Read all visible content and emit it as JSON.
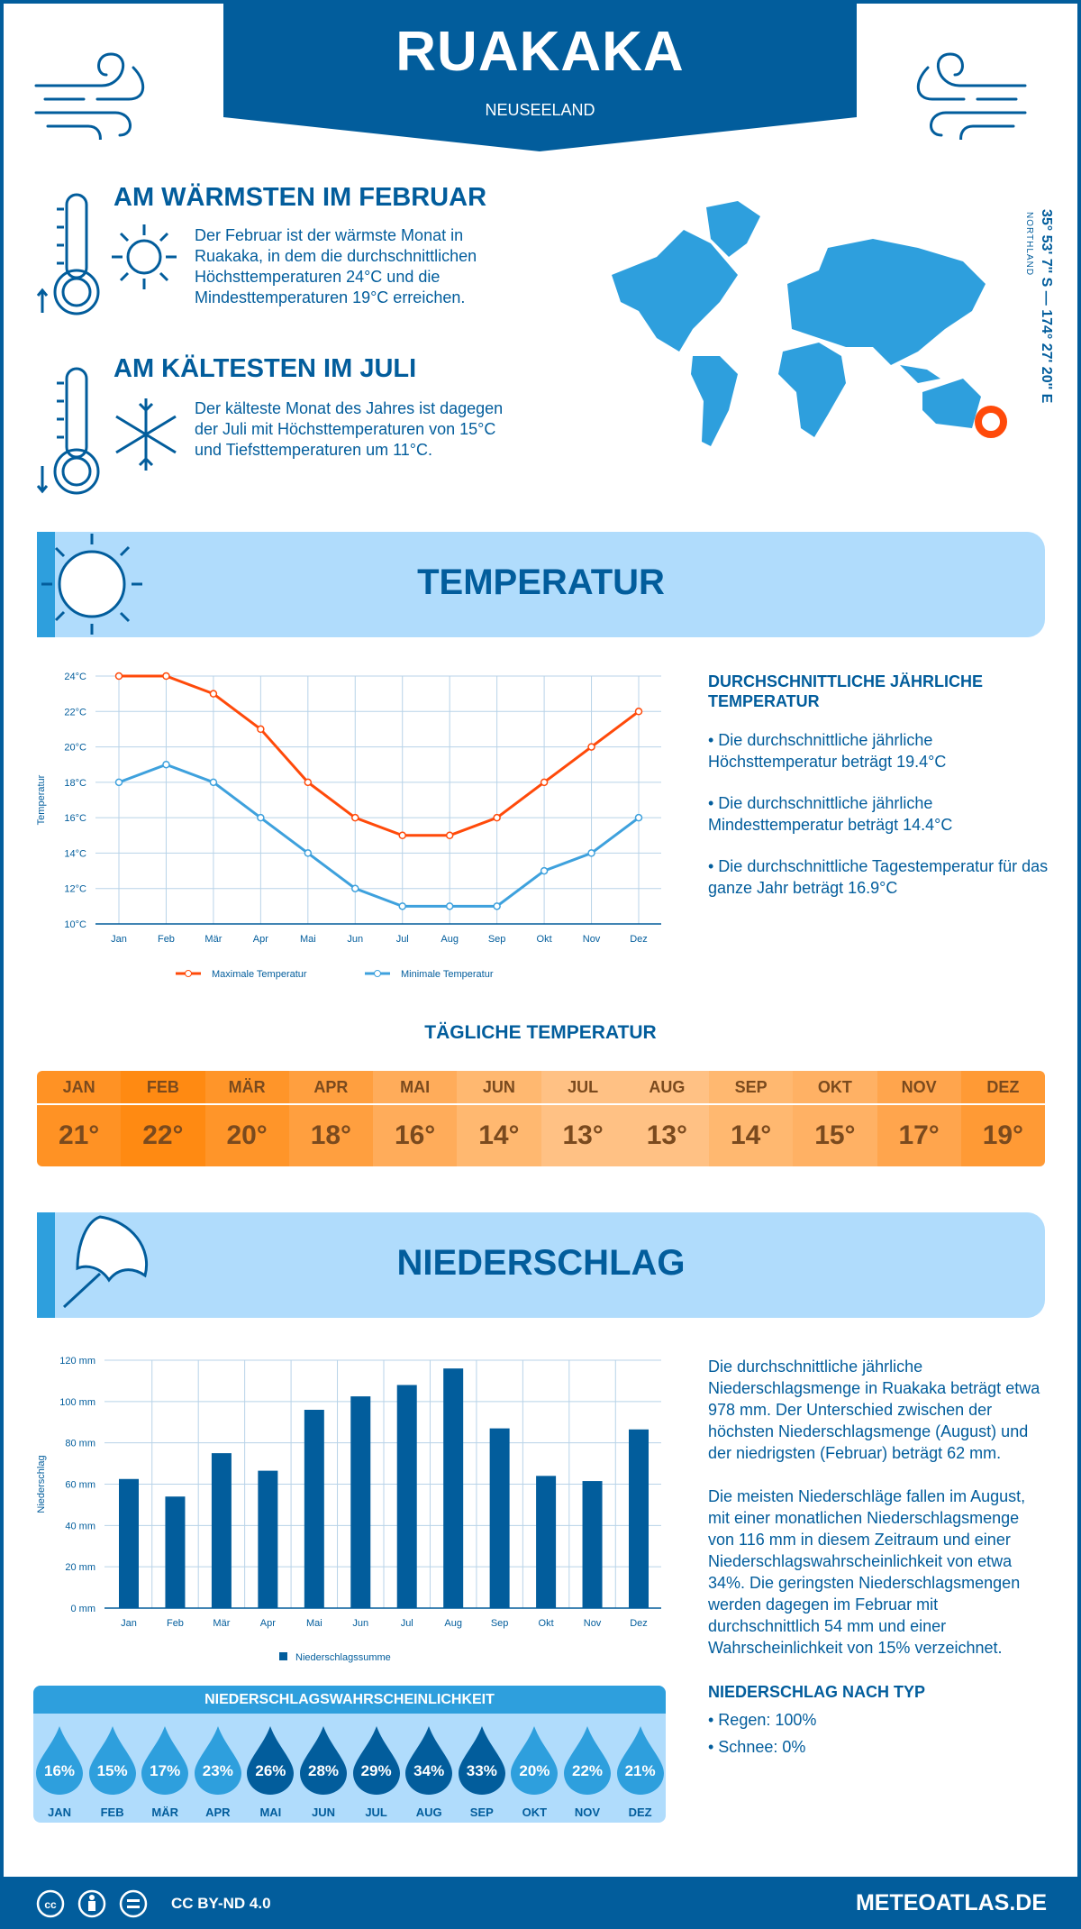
{
  "header": {
    "title": "RUAKAKA",
    "subtitle": "NEUSEELAND"
  },
  "colors": {
    "dark_blue": "#025d9c",
    "light_blue": "#2e9fdd",
    "pale_blue": "#b0dcfc",
    "max_temp": "#ff4a0a",
    "min_temp": "#3ea1dd"
  },
  "warmest": {
    "heading": "AM WÄRMSTEN IM FEBRUAR",
    "lines": [
      "Der Februar ist der wärmste Monat in",
      "Ruakaka, in dem die durchschnittlichen",
      "Höchsttemperaturen 24°C und die",
      "Mindesttemperaturen 19°C erreichen."
    ]
  },
  "coldest": {
    "heading": "AM KÄLTESTEN IM JULI",
    "lines": [
      "Der kälteste Monat des Jahres ist dagegen",
      "der Juli mit Höchsttemperaturen von 15°C",
      "und Tiefsttemperaturen um 11°C."
    ]
  },
  "location": {
    "coords": "35° 53' 7'' S — 174° 27' 20'' E",
    "region": "NORTHLAND"
  },
  "temperature": {
    "section_title": "TEMPERATUR",
    "annual_heading": "DURCHSCHNITTLICHE JÄHRLICHE TEMPERATUR",
    "bullets": [
      "• Die durchschnittliche jährliche Höchsttemperatur beträgt 19.4°C",
      "• Die durchschnittliche jährliche Mindesttemperatur beträgt 14.4°C",
      "• Die durchschnittliche Tagestemperatur für das ganze Jahr beträgt 16.9°C"
    ],
    "daily_heading": "TÄGLICHE TEMPERATUR",
    "daily": [
      {
        "month": "JAN",
        "value": "21°",
        "color": "#ff9224"
      },
      {
        "month": "FEB",
        "value": "22°",
        "color": "#ff8a12"
      },
      {
        "month": "MÄR",
        "value": "20°",
        "color": "#ff9529"
      },
      {
        "month": "APR",
        "value": "18°",
        "color": "#ff9f3f"
      },
      {
        "month": "MAI",
        "value": "16°",
        "color": "#ffac5a"
      },
      {
        "month": "JUN",
        "value": "14°",
        "color": "#ffb870"
      },
      {
        "month": "JUL",
        "value": "13°",
        "color": "#ffc184"
      },
      {
        "month": "AUG",
        "value": "13°",
        "color": "#ffc184"
      },
      {
        "month": "SEP",
        "value": "14°",
        "color": "#ffb870"
      },
      {
        "month": "OKT",
        "value": "15°",
        "color": "#ffb164"
      },
      {
        "month": "NOV",
        "value": "17°",
        "color": "#ffa54d"
      },
      {
        "month": "DEZ",
        "value": "19°",
        "color": "#ff9a35"
      }
    ]
  },
  "precipitation": {
    "section_title": "NIEDERSCHLAG",
    "para1": "Die durchschnittliche jährliche Niederschlagsmenge in Ruakaka beträgt etwa 978 mm. Der Unterschied zwischen der höchsten Niederschlagsmenge (August) und der niedrigsten (Februar) beträgt 62 mm.",
    "para2": "Die meisten Niederschläge fallen im August, mit einer monatlichen Niederschlagsmenge von 116 mm in diesem Zeitraum und einer Niederschlagswahrscheinlichkeit von etwa 34%. Die geringsten Niederschlagsmengen werden dagegen im Februar mit durchschnittlich 54 mm und einer Wahrscheinlichkeit von 15% verzeichnet.",
    "type_heading": "NIEDERSCHLAG NACH TYP",
    "types": [
      "• Regen: 100%",
      "• Schnee: 0%"
    ],
    "probability_heading": "NIEDERSCHLAGSWAHRSCHEINLICHKEIT",
    "probability": [
      {
        "month": "JAN",
        "value": "16%",
        "level": "low"
      },
      {
        "month": "FEB",
        "value": "15%",
        "level": "low"
      },
      {
        "month": "MÄR",
        "value": "17%",
        "level": "low"
      },
      {
        "month": "APR",
        "value": "23%",
        "level": "low"
      },
      {
        "month": "MAI",
        "value": "26%",
        "level": "high"
      },
      {
        "month": "JUN",
        "value": "28%",
        "level": "high"
      },
      {
        "month": "JUL",
        "value": "29%",
        "level": "high"
      },
      {
        "month": "AUG",
        "value": "34%",
        "level": "high"
      },
      {
        "month": "SEP",
        "value": "33%",
        "level": "high"
      },
      {
        "month": "OKT",
        "value": "20%",
        "level": "low"
      },
      {
        "month": "NOV",
        "value": "22%",
        "level": "low"
      },
      {
        "month": "DEZ",
        "value": "21%",
        "level": "low"
      }
    ]
  },
  "footer": {
    "license": "CC BY-ND 4.0",
    "site": "METEOATLAS.DE"
  },
  "chart_data": [
    {
      "type": "line",
      "categories": [
        "Jan",
        "Feb",
        "Mär",
        "Apr",
        "Mai",
        "Jun",
        "Jul",
        "Aug",
        "Sep",
        "Okt",
        "Nov",
        "Dez"
      ],
      "series": [
        {
          "name": "Maximale Temperatur",
          "values": [
            24,
            24,
            23,
            21,
            18,
            16,
            15,
            15,
            16,
            18,
            20,
            22
          ]
        },
        {
          "name": "Minimale Temperatur",
          "values": [
            18,
            19,
            18,
            16,
            14,
            12,
            11,
            11,
            11,
            13,
            14,
            16
          ]
        }
      ],
      "ylabel": "Temperatur",
      "ylim": [
        10,
        24
      ],
      "yticks": [
        "10°C",
        "12°C",
        "14°C",
        "16°C",
        "18°C",
        "20°C",
        "22°C",
        "24°C"
      ],
      "grid": true,
      "legend": "bottom"
    },
    {
      "type": "bar",
      "categories": [
        "Jan",
        "Feb",
        "Mär",
        "Apr",
        "Mai",
        "Jun",
        "Jul",
        "Aug",
        "Sep",
        "Okt",
        "Nov",
        "Dez"
      ],
      "series": [
        {
          "name": "Niederschlagssumme",
          "values": [
            62.5,
            54,
            75,
            66.5,
            96,
            102.5,
            108,
            116,
            87,
            64,
            61.5,
            86.5
          ]
        }
      ],
      "ylabel": "Niederschlag",
      "ylim": [
        0,
        120
      ],
      "yticks": [
        "0 mm",
        "20 mm",
        "40 mm",
        "60 mm",
        "80 mm",
        "100 mm",
        "120 mm"
      ],
      "grid": true,
      "legend": "bottom"
    }
  ]
}
